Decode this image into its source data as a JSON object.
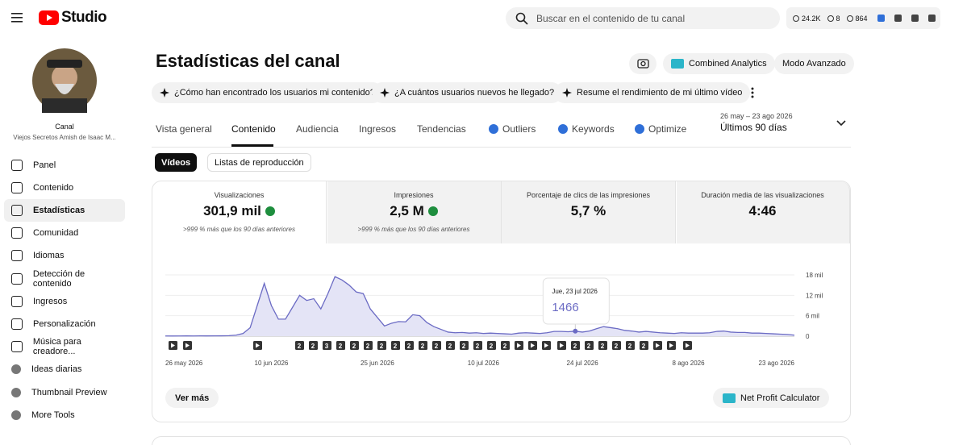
{
  "header": {
    "logo": "Studio",
    "search_placeholder": "Buscar en el contenido de tu canal",
    "stats": [
      "24.2K",
      "8",
      "864"
    ]
  },
  "sidebar": {
    "channel_label": "Canal",
    "channel_name": "Viejos Secretos Amish de Isaac M...",
    "nav": [
      "Panel",
      "Contenido",
      "Estadísticas",
      "Comunidad",
      "Idiomas",
      "Detección de contenido",
      "Ingresos",
      "Personalización",
      "Música para creadore...",
      "Ideas diarias",
      "Thumbnail Preview",
      "More Tools"
    ],
    "active": 2
  },
  "page": {
    "title": "Estadísticas del canal",
    "buttons": [
      "Combined Analytics",
      "Modo Avanzado"
    ],
    "prompts": [
      "¿Cómo han encontrado los usuarios mi contenido?",
      "¿A cuántos usuarios nuevos he llegado?",
      "Resume el rendimiento de mi último vídeo"
    ],
    "tabs": [
      "Vista general",
      "Contenido",
      "Audiencia",
      "Ingresos",
      "Tendencias",
      "Outliers",
      "Keywords",
      "Optimize"
    ],
    "active_tab": 1,
    "date_range": "26 may – 23 ago 2026",
    "period": "Últimos 90 días",
    "subtabs": [
      "Vídeos",
      "Listas de reproducción"
    ],
    "metrics": [
      {
        "label": "Visualizaciones",
        "value": "301,9 mil",
        "note": ">999 % más que los 90 días anteriores"
      },
      {
        "label": "Impresiones",
        "value": "2,5 M",
        "note": ">999 % más que los 90 días anteriores"
      },
      {
        "label": "Porcentaje de clics de las impresiones",
        "value": "5,7 %"
      },
      {
        "label": "Duración media de las visualizaciones",
        "value": "4:46"
      }
    ],
    "more_button": "Ver más",
    "calculator_button": "Net Profit Calculator"
  },
  "chart_data": {
    "type": "line",
    "color": "#6b6bc4",
    "fill": "#e4e4f6",
    "x": [
      "2026-05-26",
      "2026-05-27",
      "2026-05-28",
      "2026-05-29",
      "2026-05-30",
      "2026-05-31",
      "2026-06-01",
      "2026-06-02",
      "2026-06-03",
      "2026-06-04",
      "2026-06-05",
      "2026-06-06",
      "2026-06-07",
      "2026-06-08",
      "2026-06-09",
      "2026-06-10",
      "2026-06-11",
      "2026-06-12",
      "2026-06-13",
      "2026-06-14",
      "2026-06-15",
      "2026-06-16",
      "2026-06-17",
      "2026-06-18",
      "2026-06-19",
      "2026-06-20",
      "2026-06-21",
      "2026-06-22",
      "2026-06-23",
      "2026-06-24",
      "2026-06-25",
      "2026-06-26",
      "2026-06-27",
      "2026-06-28",
      "2026-06-29",
      "2026-06-30",
      "2026-07-01",
      "2026-07-02",
      "2026-07-03",
      "2026-07-04",
      "2026-07-05",
      "2026-07-06",
      "2026-07-07",
      "2026-07-08",
      "2026-07-09",
      "2026-07-10",
      "2026-07-11",
      "2026-07-12",
      "2026-07-13",
      "2026-07-14",
      "2026-07-15",
      "2026-07-16",
      "2026-07-17",
      "2026-07-18",
      "2026-07-19",
      "2026-07-20",
      "2026-07-21",
      "2026-07-22",
      "2026-07-23",
      "2026-07-24",
      "2026-07-25",
      "2026-07-26",
      "2026-07-27",
      "2026-07-28",
      "2026-07-29",
      "2026-07-30",
      "2026-07-31",
      "2026-08-01",
      "2026-08-02",
      "2026-08-03",
      "2026-08-04",
      "2026-08-05",
      "2026-08-06",
      "2026-08-07",
      "2026-08-08",
      "2026-08-09",
      "2026-08-10",
      "2026-08-11",
      "2026-08-12",
      "2026-08-13",
      "2026-08-14",
      "2026-08-15",
      "2026-08-16",
      "2026-08-17",
      "2026-08-18",
      "2026-08-19",
      "2026-08-20",
      "2026-08-21",
      "2026-08-22",
      "2026-08-23"
    ],
    "values": [
      60,
      50,
      60,
      70,
      60,
      80,
      70,
      90,
      100,
      150,
      300,
      800,
      2500,
      9000,
      15500,
      9000,
      5000,
      5000,
      8500,
      12000,
      10500,
      11000,
      8000,
      12500,
      17500,
      16500,
      15000,
      13000,
      12500,
      8000,
      5500,
      3000,
      3800,
      4300,
      4200,
      6300,
      6000,
      4000,
      2800,
      2000,
      1200,
      1000,
      1100,
      900,
      1000,
      800,
      900,
      800,
      700,
      600,
      900,
      1000,
      900,
      800,
      1000,
      1400,
      1400,
      1300,
      1466,
      1200,
      1500,
      2200,
      2800,
      2500,
      2200,
      1700,
      1500,
      1200,
      1400,
      1200,
      1000,
      900,
      800,
      1000,
      900,
      900,
      900,
      1000,
      1400,
      1500,
      1200,
      1100,
      1100,
      900,
      900,
      800,
      700,
      600,
      500,
      300
    ],
    "ylim": [
      0,
      18000
    ],
    "yticks": [
      0,
      {
        "value": 6000,
        "label": "6 mil"
      },
      {
        "value": 12000,
        "label": "12 mil"
      },
      {
        "value": 18000,
        "label": "18 mil"
      }
    ],
    "xticks": [
      {
        "value": "2026-05-26",
        "label": "26 may 2026"
      },
      {
        "value": "2026-06-10",
        "label": "10 jun 2026"
      },
      {
        "value": "2026-06-25",
        "label": "25 jun 2026"
      },
      {
        "value": "2026-07-10",
        "label": "10 jul 2026"
      },
      {
        "value": "2026-07-24",
        "label": "24 jul 2026"
      },
      {
        "value": "2026-08-08",
        "label": "8 ago 2026"
      },
      {
        "value": "2026-08-23",
        "label": "23 ago 2026"
      }
    ],
    "tooltip": {
      "x": "2026-07-23",
      "label": "Jue, 23 jul 2026",
      "value": 1466
    },
    "markers": [
      null,
      null,
      null,
      2,
      2,
      3,
      2,
      2,
      2,
      2,
      2,
      2,
      2,
      2,
      2,
      2,
      2,
      2,
      2,
      null,
      null,
      null,
      null,
      2,
      2,
      2,
      2,
      2,
      2,
      null,
      null,
      null
    ]
  }
}
